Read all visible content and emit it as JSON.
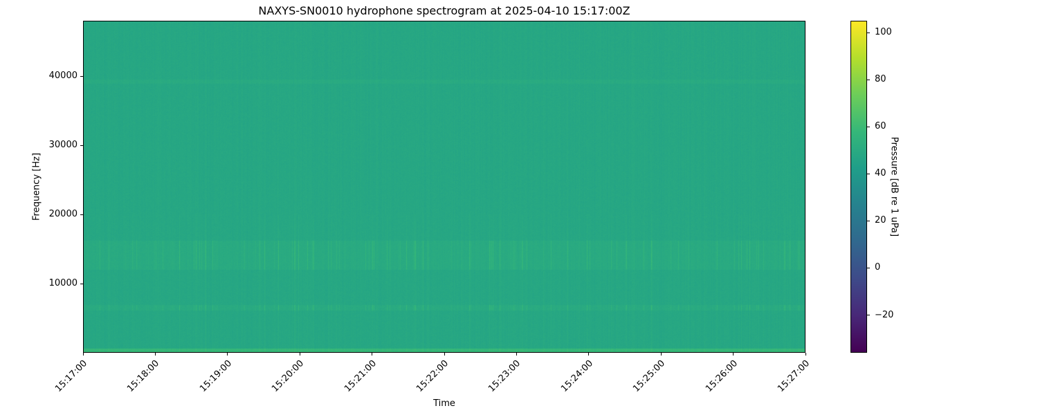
{
  "chart_data": {
    "type": "heatmap",
    "title": "NAXYS-SN0010 hydrophone spectrogram at 2025-04-10 15:17:00Z",
    "xlabel": "Time",
    "ylabel": "Frequency [Hz]",
    "colorbar_label": "Pressure [dB re 1 uPa]",
    "colormap": "viridis",
    "xlim": [
      "15:17:00",
      "15:27:00"
    ],
    "ylim": [
      0,
      48000
    ],
    "clim": [
      -36,
      105
    ],
    "x_ticks": [
      "15:17:00",
      "15:18:00",
      "15:19:00",
      "15:20:00",
      "15:21:00",
      "15:22:00",
      "15:23:00",
      "15:24:00",
      "15:25:00",
      "15:26:00",
      "15:27:00"
    ],
    "y_ticks": [
      10000,
      20000,
      30000,
      40000
    ],
    "y_tick_labels": [
      "10000",
      "20000",
      "30000",
      "40000"
    ],
    "colorbar_ticks": [
      -20,
      0,
      20,
      40,
      60,
      80,
      100
    ],
    "colorbar_tick_labels": [
      "−20",
      "0",
      "20",
      "40",
      "60",
      "80",
      "100"
    ],
    "background_level_db": 48,
    "features": [
      {
        "frequency_hz": [
          0,
          500
        ],
        "level_db": 58
      },
      {
        "frequency_hz": [
          6000,
          6800
        ],
        "level_db": 60
      },
      {
        "frequency_hz": [
          12000,
          16200
        ],
        "level_db": 55
      },
      {
        "frequency_hz": [
          39000,
          39600
        ],
        "level_db": 52
      }
    ]
  }
}
